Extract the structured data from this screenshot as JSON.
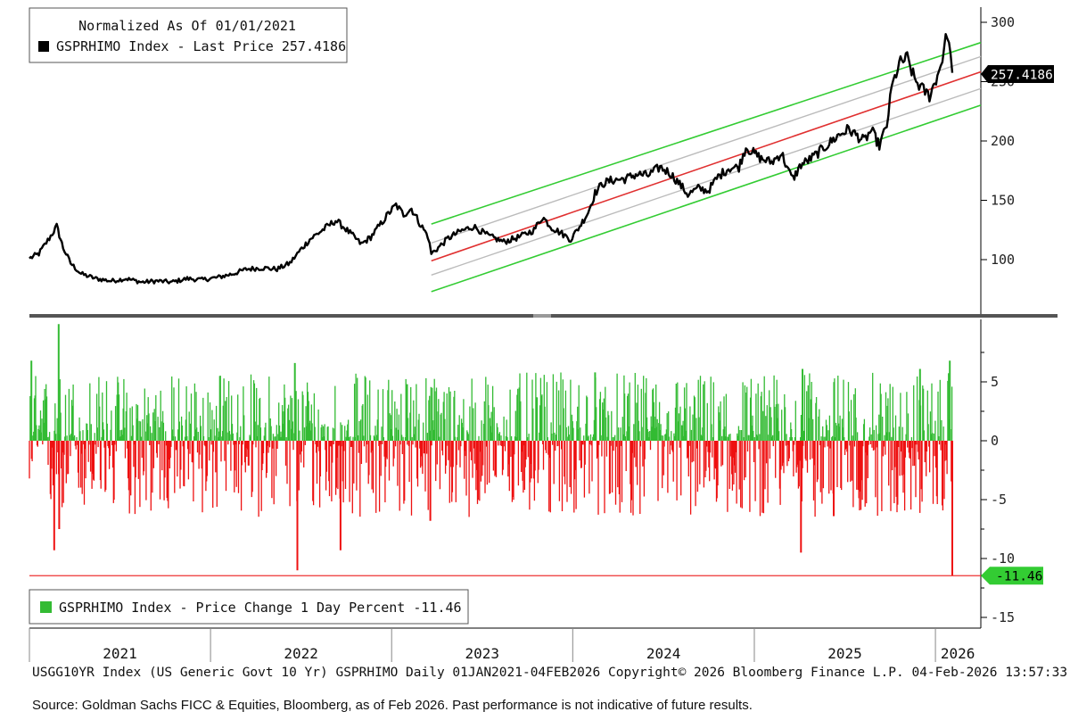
{
  "chart_data": [
    {
      "type": "line",
      "panel": "top",
      "legend": {
        "title": "Normalized As Of 01/01/2021",
        "entry": "GSPRHIMO Index - Last Price 257.4186",
        "color": "#000000",
        "placement": "top-left"
      },
      "last_value_label": "257.4186",
      "ylim": [
        60,
        310
      ],
      "y_ticks": [
        100,
        150,
        200,
        250,
        300
      ],
      "y_tick_labels": [
        "100",
        "150",
        "200",
        "250",
        "300"
      ],
      "x_range": [
        "2021-01-01",
        "2026-02-04"
      ],
      "series": [
        {
          "color": "#000000",
          "points": [
            [
              "2021-01-01",
              101
            ],
            [
              "2021-01-20",
              105
            ],
            [
              "2021-02-10",
              118
            ],
            [
              "2021-02-25",
              128
            ],
            [
              "2021-03-10",
              110
            ],
            [
              "2021-03-25",
              97
            ],
            [
              "2021-04-15",
              88
            ],
            [
              "2021-05-15",
              84
            ],
            [
              "2021-06-15",
              82
            ],
            [
              "2021-07-15",
              84
            ],
            [
              "2021-08-15",
              81
            ],
            [
              "2021-09-15",
              82
            ],
            [
              "2021-10-15",
              81
            ],
            [
              "2021-11-15",
              84
            ],
            [
              "2021-12-15",
              83
            ],
            [
              "2022-01-15",
              85
            ],
            [
              "2022-02-15",
              88
            ],
            [
              "2022-03-15",
              92
            ],
            [
              "2022-04-15",
              93
            ],
            [
              "2022-05-15",
              92
            ],
            [
              "2022-06-10",
              97
            ],
            [
              "2022-07-01",
              108
            ],
            [
              "2022-07-20",
              117
            ],
            [
              "2022-08-15",
              125
            ],
            [
              "2022-09-10",
              133
            ],
            [
              "2022-09-25",
              128
            ],
            [
              "2022-10-15",
              120
            ],
            [
              "2022-11-01",
              113
            ],
            [
              "2022-11-20",
              119
            ],
            [
              "2022-12-10",
              130
            ],
            [
              "2022-12-28",
              140
            ],
            [
              "2023-01-10",
              146
            ],
            [
              "2023-01-25",
              138
            ],
            [
              "2023-02-10",
              143
            ],
            [
              "2023-03-01",
              129
            ],
            [
              "2023-03-15",
              120
            ],
            [
              "2023-03-22",
              105
            ],
            [
              "2023-04-05",
              110
            ],
            [
              "2023-04-25",
              118
            ],
            [
              "2023-05-20",
              124
            ],
            [
              "2023-06-15",
              128
            ],
            [
              "2023-07-15",
              120
            ],
            [
              "2023-08-15",
              115
            ],
            [
              "2023-09-15",
              119
            ],
            [
              "2023-10-15",
              125
            ],
            [
              "2023-11-01",
              136
            ],
            [
              "2023-11-20",
              127
            ],
            [
              "2023-12-10",
              122
            ],
            [
              "2023-12-28",
              117
            ],
            [
              "2024-01-15",
              128
            ],
            [
              "2024-02-01",
              140
            ],
            [
              "2024-02-15",
              156
            ],
            [
              "2024-03-01",
              164
            ],
            [
              "2024-03-20",
              167
            ],
            [
              "2024-04-15",
              168
            ],
            [
              "2024-05-10",
              172
            ],
            [
              "2024-06-01",
              171
            ],
            [
              "2024-06-25",
              178
            ],
            [
              "2024-07-15",
              173
            ],
            [
              "2024-08-01",
              165
            ],
            [
              "2024-08-20",
              155
            ],
            [
              "2024-09-10",
              160
            ],
            [
              "2024-09-30",
              158
            ],
            [
              "2024-10-20",
              170
            ],
            [
              "2024-11-10",
              177
            ],
            [
              "2024-12-01",
              178
            ],
            [
              "2024-12-15",
              195
            ],
            [
              "2024-12-30",
              190
            ],
            [
              "2025-01-15",
              185
            ],
            [
              "2025-02-05",
              182
            ],
            [
              "2025-02-25",
              190
            ],
            [
              "2025-03-10",
              175
            ],
            [
              "2025-03-20",
              168
            ],
            [
              "2025-04-05",
              180
            ],
            [
              "2025-04-25",
              185
            ],
            [
              "2025-05-15",
              192
            ],
            [
              "2025-06-01",
              198
            ],
            [
              "2025-06-20",
              205
            ],
            [
              "2025-07-10",
              210
            ],
            [
              "2025-07-25",
              205
            ],
            [
              "2025-08-10",
              200
            ],
            [
              "2025-08-25",
              209
            ],
            [
              "2025-09-10",
              196
            ],
            [
              "2025-09-25",
              213
            ],
            [
              "2025-10-05",
              245
            ],
            [
              "2025-10-20",
              265
            ],
            [
              "2025-11-05",
              270
            ],
            [
              "2025-11-20",
              252
            ],
            [
              "2025-12-05",
              244
            ],
            [
              "2025-12-20",
              238
            ],
            [
              "2026-01-05",
              255
            ],
            [
              "2026-01-15",
              270
            ],
            [
              "2026-01-25",
              292
            ],
            [
              "2026-02-04",
              257.4186
            ]
          ]
        }
      ],
      "channel": {
        "x_range": [
          "2023-03-22",
          "2026-02-04"
        ],
        "green_upper": [
          130,
          275
        ],
        "grey_upper": [
          114,
          263
        ],
        "red_mid": [
          99,
          250
        ],
        "grey_lower": [
          87,
          236
        ],
        "green_lower": [
          73,
          222
        ],
        "colors": {
          "green": "#33cc33",
          "grey": "#bbbbbb",
          "red": "#e03030"
        }
      }
    },
    {
      "type": "bar",
      "panel": "bottom",
      "legend": {
        "entry": "GSPRHIMO Index - Price Change 1 Day Percent -11.46",
        "color": "#33bb33",
        "placement": "bottom-left"
      },
      "last_value_label": "-11.46",
      "reference_line": -11.46,
      "ylim": [
        -16,
        10
      ],
      "y_ticks": [
        5,
        0,
        -5,
        -10,
        -15
      ],
      "y_tick_labels": [
        "5",
        "0",
        "-5",
        "-10",
        "-15"
      ],
      "colors": {
        "positive": "#33bb33",
        "negative": "#ee1111"
      },
      "notable_moves": [
        [
          "2021-01-05",
          6.8
        ],
        [
          "2021-03-01",
          9.9
        ],
        [
          "2021-03-02",
          -7.5
        ],
        [
          "2021-02-20",
          -9.3
        ],
        [
          "2022-01-20",
          5.5
        ],
        [
          "2022-06-20",
          6.6
        ],
        [
          "2022-06-25",
          -11.0
        ],
        [
          "2022-09-20",
          -9.3
        ],
        [
          "2023-02-01",
          4.8
        ],
        [
          "2023-03-20",
          -6.8
        ],
        [
          "2024-02-15",
          5.8
        ],
        [
          "2025-04-08",
          6.1
        ],
        [
          "2025-04-05",
          -9.5
        ],
        [
          "2025-06-10",
          -6.4
        ],
        [
          "2025-12-01",
          6.1
        ],
        [
          "2026-01-30",
          6.8
        ],
        [
          "2026-02-04",
          -11.46
        ]
      ],
      "daily_stats": {
        "typical_positive": 1.6,
        "typical_negative": -1.8
      }
    }
  ],
  "x_axis": {
    "years": [
      "2021",
      "2022",
      "2023",
      "2024",
      "2025",
      "2026"
    ]
  },
  "footer": "USGG10YR Index (US Generic Govt 10 Yr) GSPRHIMO Daily 01JAN2021-04FEB2026 Copyright© 2026 Bloomberg Finance L.P. 04-Feb-2026 13:57:33",
  "source": "Source: Goldman Sachs FICC & Equities, Bloomberg, as of Feb 2026. Past performance is not indicative of future results."
}
